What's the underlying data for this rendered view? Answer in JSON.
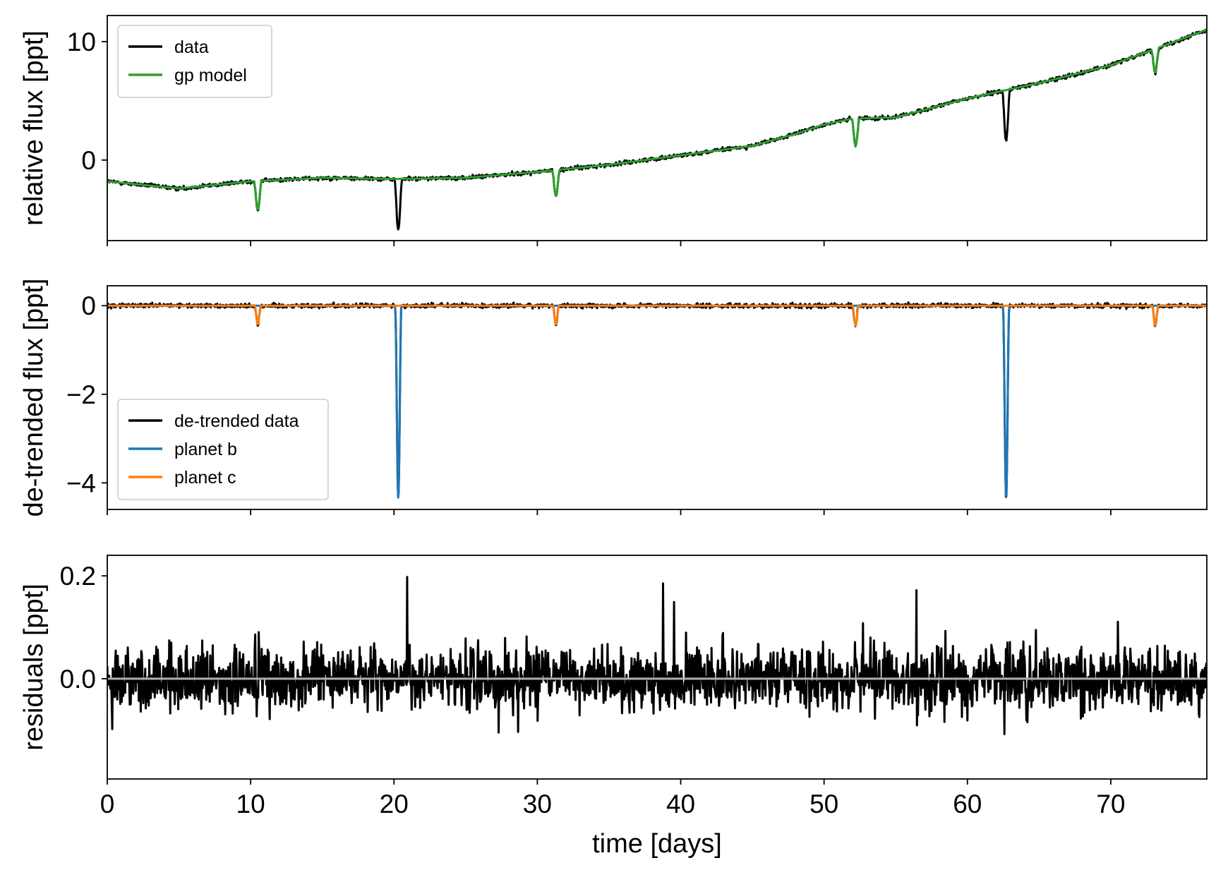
{
  "chart_data": [
    {
      "type": "line",
      "ylabel": "relative flux [ppt]",
      "xlabel": "",
      "xlim": [
        0,
        76.7
      ],
      "ylim": [
        -6.8,
        12.2
      ],
      "yticks": [
        0,
        10
      ],
      "xticks": [
        0,
        10,
        20,
        30,
        40,
        50,
        60,
        70
      ],
      "show_x_tick_labels": false,
      "grid": false,
      "legend": {
        "placement": "top-left",
        "entries": [
          "data",
          "gp model"
        ]
      },
      "series": [
        {
          "name": "data",
          "color": "#000000",
          "baseline_trend": {
            "x": [
              0,
              5,
              10,
              15,
              20,
              25,
              30,
              35,
              40,
              45,
              48,
              50,
              52,
              55,
              60,
              65,
              70,
              76.7
            ],
            "y": [
              -1.8,
              -2.4,
              -1.8,
              -1.5,
              -1.6,
              -1.5,
              -1.0,
              -0.4,
              0.4,
              1.2,
              2.2,
              3.0,
              3.5,
              3.6,
              5.2,
              6.5,
              8.0,
              11.0
            ]
          },
          "transits": [
            {
              "t": 10.5,
              "depth": 2.4
            },
            {
              "t": 20.3,
              "depth": 4.3
            },
            {
              "t": 31.3,
              "depth": 2.2
            },
            {
              "t": 52.2,
              "depth": 2.3
            },
            {
              "t": 62.7,
              "depth": 4.3
            },
            {
              "t": 73.1,
              "depth": 2.0
            }
          ]
        },
        {
          "name": "gp model",
          "color": "#2ca02c",
          "baseline_trend": {
            "x": [
              0,
              5,
              10,
              15,
              20,
              25,
              30,
              35,
              40,
              45,
              48,
              50,
              52,
              55,
              60,
              65,
              70,
              76.7
            ],
            "y": [
              -1.8,
              -2.4,
              -1.8,
              -1.5,
              -1.6,
              -1.5,
              -1.0,
              -0.4,
              0.4,
              1.2,
              2.2,
              3.0,
              3.5,
              3.6,
              5.2,
              6.5,
              8.0,
              11.0
            ]
          },
          "transits": [
            {
              "t": 10.5,
              "depth": 2.4
            },
            {
              "t": 31.3,
              "depth": 2.2
            },
            {
              "t": 52.2,
              "depth": 2.3
            },
            {
              "t": 73.1,
              "depth": 2.0
            }
          ]
        }
      ]
    },
    {
      "type": "line",
      "ylabel": "de-trended flux [ppt]",
      "xlabel": "",
      "xlim": [
        0,
        76.7
      ],
      "ylim": [
        -4.6,
        0.45
      ],
      "yticks": [
        -4,
        -2,
        0
      ],
      "ytick_labels": [
        "−4",
        "−2",
        "0"
      ],
      "xticks": [
        0,
        10,
        20,
        30,
        40,
        50,
        60,
        70
      ],
      "show_x_tick_labels": false,
      "grid": false,
      "legend": {
        "placement": "lower-left",
        "entries": [
          "de-trended data",
          "planet b",
          "planet c"
        ]
      },
      "series": [
        {
          "name": "de-trended data",
          "color": "#000000",
          "noise_ppt": 0.05
        },
        {
          "name": "planet b",
          "color": "#1f77b4",
          "transits": [
            {
              "t": 20.3,
              "depth": 4.35
            },
            {
              "t": 62.7,
              "depth": 4.35
            }
          ]
        },
        {
          "name": "planet c",
          "color": "#ff7f0e",
          "transits": [
            {
              "t": 10.5,
              "depth": 0.42
            },
            {
              "t": 31.3,
              "depth": 0.42
            },
            {
              "t": 52.2,
              "depth": 0.45
            },
            {
              "t": 73.1,
              "depth": 0.45
            }
          ]
        }
      ]
    },
    {
      "type": "line",
      "ylabel": "residuals [ppt]",
      "xlabel": "time [days]",
      "xlim": [
        0,
        76.7
      ],
      "ylim": [
        -0.195,
        0.24
      ],
      "yticks": [
        0.0,
        0.2
      ],
      "ytick_labels": [
        "0.0",
        "0.2"
      ],
      "xticks": [
        0,
        10,
        20,
        30,
        40,
        50,
        60,
        70
      ],
      "xtick_labels": [
        "0",
        "10",
        "20",
        "30",
        "40",
        "50",
        "60",
        "70"
      ],
      "show_x_tick_labels": true,
      "grid": false,
      "series": [
        {
          "name": "residuals",
          "color": "#000000",
          "noise_ppt": 0.035,
          "max": 0.22,
          "min": -0.17
        },
        {
          "name": "zero line",
          "color": "#b0b0b0",
          "value": 0.0
        }
      ]
    }
  ]
}
